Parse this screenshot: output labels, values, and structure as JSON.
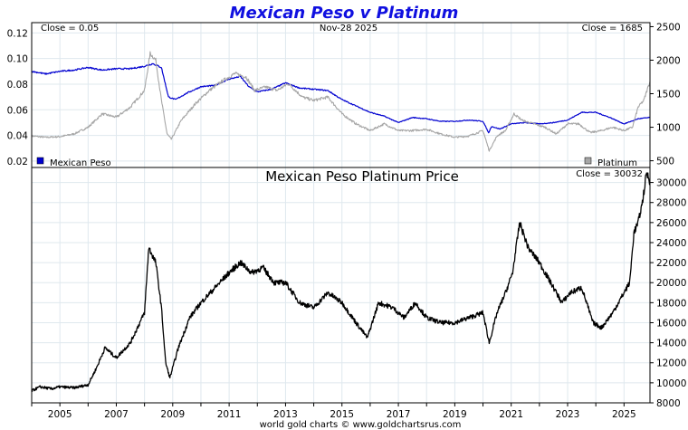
{
  "footer": "world gold charts © www.goldchartsrus.com",
  "chart_data": [
    {
      "type": "line",
      "title": "Mexican Peso v Platinum",
      "left_note": "Close = 0.05",
      "date_note": "Nov-28  2025",
      "right_note": "Close = 1685",
      "x_ticks": [
        "2005",
        "2007",
        "2009",
        "2011",
        "2013",
        "2015",
        "2017",
        "2019",
        "2021",
        "2023",
        "2025"
      ],
      "x_range": [
        2004.0,
        2025.92
      ],
      "y_left": {
        "range": [
          0.015,
          0.128
        ],
        "ticks": [
          "0.12",
          "0.10",
          "0.08",
          "0.06",
          "0.04",
          "0.02"
        ]
      },
      "y_right": {
        "range": [
          400,
          2560
        ],
        "ticks": [
          "2500",
          "2000",
          "1500",
          "1000",
          "500"
        ]
      },
      "legend": {
        "placement": "bottom",
        "left": "Mexican Peso",
        "right": "Platinum"
      },
      "series": [
        {
          "name": "Mexican Peso",
          "color": "#0000d0",
          "axis": "left",
          "x": [
            2004.0,
            2004.5,
            2005.0,
            2005.5,
            2006.0,
            2006.5,
            2007.0,
            2007.5,
            2008.0,
            2008.3,
            2008.6,
            2008.85,
            2009.1,
            2009.5,
            2010.0,
            2010.5,
            2011.0,
            2011.4,
            2011.7,
            2012.0,
            2012.5,
            2013.0,
            2013.5,
            2014.0,
            2014.5,
            2015.0,
            2015.5,
            2016.0,
            2016.5,
            2017.0,
            2017.5,
            2018.0,
            2018.5,
            2019.0,
            2019.5,
            2020.0,
            2020.2,
            2020.3,
            2020.6,
            2021.0,
            2021.5,
            2022.0,
            2022.5,
            2023.0,
            2023.5,
            2024.0,
            2024.5,
            2024.8,
            2025.0,
            2025.5,
            2025.92
          ],
          "y": [
            0.09,
            0.088,
            0.09,
            0.091,
            0.093,
            0.091,
            0.092,
            0.092,
            0.094,
            0.096,
            0.093,
            0.07,
            0.068,
            0.073,
            0.078,
            0.079,
            0.084,
            0.086,
            0.078,
            0.074,
            0.076,
            0.081,
            0.077,
            0.076,
            0.075,
            0.068,
            0.063,
            0.058,
            0.055,
            0.05,
            0.054,
            0.053,
            0.051,
            0.051,
            0.052,
            0.051,
            0.042,
            0.047,
            0.045,
            0.049,
            0.05,
            0.049,
            0.05,
            0.052,
            0.058,
            0.058,
            0.054,
            0.051,
            0.049,
            0.053,
            0.054
          ]
        },
        {
          "name": "Platinum",
          "color": "#a6a6a6",
          "axis": "right",
          "x": [
            2004.0,
            2004.5,
            2005.0,
            2005.5,
            2006.0,
            2006.5,
            2007.0,
            2007.5,
            2008.0,
            2008.2,
            2008.4,
            2008.6,
            2008.8,
            2008.95,
            2009.3,
            2009.8,
            2010.3,
            2010.8,
            2011.2,
            2011.6,
            2011.9,
            2012.3,
            2012.7,
            2013.1,
            2013.6,
            2014.0,
            2014.5,
            2015.0,
            2015.5,
            2016.0,
            2016.5,
            2017.0,
            2017.5,
            2018.0,
            2018.5,
            2019.0,
            2019.5,
            2020.0,
            2020.22,
            2020.5,
            2020.8,
            2021.1,
            2021.4,
            2021.8,
            2022.2,
            2022.6,
            2023.0,
            2023.4,
            2023.8,
            2024.2,
            2024.6,
            2025.0,
            2025.3,
            2025.5,
            2025.7,
            2025.92
          ],
          "y": [
            870,
            850,
            860,
            900,
            1000,
            1200,
            1150,
            1300,
            1550,
            2100,
            2000,
            1400,
            900,
            820,
            1100,
            1350,
            1550,
            1700,
            1800,
            1750,
            1550,
            1600,
            1550,
            1650,
            1450,
            1400,
            1450,
            1200,
            1050,
            950,
            1050,
            950,
            950,
            970,
            900,
            850,
            870,
            950,
            650,
            870,
            950,
            1200,
            1100,
            1050,
            1000,
            900,
            1050,
            1050,
            920,
            950,
            1000,
            950,
            1000,
            1300,
            1400,
            1685
          ]
        }
      ]
    },
    {
      "type": "line",
      "title": "Mexican Peso Platinum Price",
      "right_note": "Close = 30032",
      "x_ticks": [
        "2005",
        "2007",
        "2009",
        "2011",
        "2013",
        "2015",
        "2017",
        "2019",
        "2021",
        "2023",
        "2025"
      ],
      "x_range": [
        2004.0,
        2025.92
      ],
      "y_right": {
        "range": [
          8000,
          31500
        ],
        "ticks": [
          "30000",
          "28000",
          "26000",
          "24000",
          "22000",
          "20000",
          "18000",
          "16000",
          "14000",
          "12000",
          "10000",
          "8000"
        ]
      },
      "series": [
        {
          "name": "",
          "color": "#000000",
          "axis": "right",
          "x": [
            2004.0,
            2004.3,
            2004.7,
            2005.0,
            2005.5,
            2006.0,
            2006.3,
            2006.6,
            2007.0,
            2007.5,
            2008.0,
            2008.15,
            2008.4,
            2008.6,
            2008.75,
            2008.9,
            2009.2,
            2009.6,
            2010.0,
            2010.5,
            2011.0,
            2011.4,
            2011.8,
            2012.2,
            2012.6,
            2013.0,
            2013.5,
            2014.0,
            2014.5,
            2015.0,
            2015.5,
            2015.9,
            2016.3,
            2016.8,
            2017.2,
            2017.6,
            2018.0,
            2018.5,
            2019.0,
            2019.5,
            2020.0,
            2020.22,
            2020.5,
            2020.8,
            2021.05,
            2021.3,
            2021.6,
            2022.0,
            2022.4,
            2022.8,
            2023.1,
            2023.5,
            2023.9,
            2024.2,
            2024.6,
            2025.0,
            2025.2,
            2025.35,
            2025.5,
            2025.65,
            2025.8,
            2025.92
          ],
          "y": [
            9200,
            9600,
            9400,
            9600,
            9500,
            9800,
            11500,
            13500,
            12500,
            14000,
            17000,
            23500,
            22000,
            17500,
            12000,
            10500,
            13500,
            16500,
            18000,
            19500,
            21000,
            22000,
            21000,
            21500,
            20000,
            20000,
            18000,
            17500,
            19000,
            18000,
            16000,
            14500,
            18000,
            17500,
            16500,
            18000,
            16500,
            16000,
            16000,
            16500,
            17000,
            14000,
            17000,
            19000,
            21000,
            26000,
            23500,
            22000,
            20000,
            18000,
            19000,
            19500,
            16000,
            15500,
            17000,
            19000,
            20000,
            25000,
            26000,
            28000,
            31000,
            30032
          ]
        }
      ]
    }
  ]
}
